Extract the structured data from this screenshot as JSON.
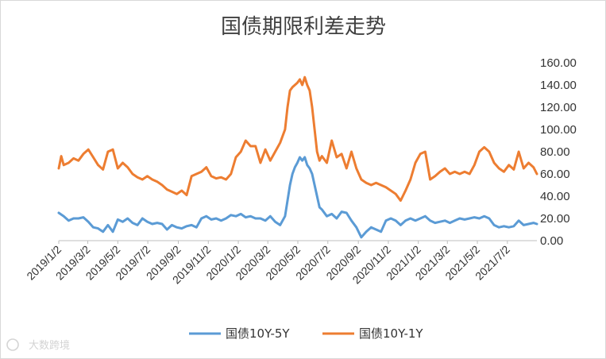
{
  "chart_data": {
    "type": "line",
    "title": "国债期限利差走势",
    "x_tick_labels": [
      "2019/1/2",
      "2019/3/2",
      "2019/5/2",
      "2019/7/2",
      "2019/9/2",
      "2019/11/2",
      "2020/1/2",
      "2020/3/2",
      "2020/5/2",
      "2020/7/2",
      "2020/9/2",
      "2020/11/2",
      "2021/1/2",
      "2021/3/2",
      "2021/5/2",
      "2021/7/2"
    ],
    "y_tick_labels": [
      "0.00",
      "20.00",
      "40.00",
      "60.00",
      "80.00",
      "100.00",
      "120.00",
      "140.00",
      "160.00"
    ],
    "ylim": [
      0,
      160
    ],
    "x_range": [
      "2019/1/2",
      "2021/8/31"
    ],
    "grid": false,
    "legend_position": "bottom",
    "series": [
      {
        "name": "国债10Y-5Y",
        "color": "#5b9bd5",
        "points": [
          [
            "2019/1/2",
            25
          ],
          [
            "2019/1/12",
            22
          ],
          [
            "2019/1/22",
            18
          ],
          [
            "2019/2/1",
            20
          ],
          [
            "2019/2/11",
            20
          ],
          [
            "2019/2/21",
            21
          ],
          [
            "2019/3/3",
            17
          ],
          [
            "2019/3/13",
            12
          ],
          [
            "2019/3/23",
            11
          ],
          [
            "2019/4/2",
            8
          ],
          [
            "2019/4/12",
            14
          ],
          [
            "2019/4/22",
            8
          ],
          [
            "2019/5/2",
            19
          ],
          [
            "2019/5/12",
            17
          ],
          [
            "2019/5/22",
            20
          ],
          [
            "2019/6/1",
            16
          ],
          [
            "2019/6/11",
            14
          ],
          [
            "2019/6/21",
            20
          ],
          [
            "2019/7/1",
            17
          ],
          [
            "2019/7/11",
            15
          ],
          [
            "2019/7/21",
            16
          ],
          [
            "2019/7/31",
            15
          ],
          [
            "2019/8/10",
            10
          ],
          [
            "2019/8/20",
            14
          ],
          [
            "2019/8/30",
            12
          ],
          [
            "2019/9/9",
            11
          ],
          [
            "2019/9/19",
            13
          ],
          [
            "2019/9/29",
            14
          ],
          [
            "2019/10/9",
            12
          ],
          [
            "2019/10/19",
            20
          ],
          [
            "2019/10/29",
            22
          ],
          [
            "2019/11/8",
            19
          ],
          [
            "2019/11/18",
            20
          ],
          [
            "2019/11/28",
            18
          ],
          [
            "2019/12/8",
            20
          ],
          [
            "2019/12/18",
            23
          ],
          [
            "2019/12/28",
            22
          ],
          [
            "2020/1/7",
            24
          ],
          [
            "2020/1/17",
            21
          ],
          [
            "2020/1/27",
            22
          ],
          [
            "2020/2/6",
            20
          ],
          [
            "2020/2/16",
            20
          ],
          [
            "2020/2/26",
            18
          ],
          [
            "2020/3/7",
            22
          ],
          [
            "2020/3/17",
            17
          ],
          [
            "2020/3/27",
            14
          ],
          [
            "2020/4/6",
            22
          ],
          [
            "2020/4/11",
            36
          ],
          [
            "2020/4/16",
            50
          ],
          [
            "2020/4/21",
            60
          ],
          [
            "2020/4/26",
            66
          ],
          [
            "2020/5/1",
            70
          ],
          [
            "2020/5/6",
            75
          ],
          [
            "2020/5/11",
            72
          ],
          [
            "2020/5/16",
            75
          ],
          [
            "2020/5/21",
            68
          ],
          [
            "2020/5/26",
            65
          ],
          [
            "2020/5/31",
            60
          ],
          [
            "2020/6/5",
            50
          ],
          [
            "2020/6/10",
            40
          ],
          [
            "2020/6/15",
            30
          ],
          [
            "2020/6/20",
            28
          ],
          [
            "2020/6/30",
            22
          ],
          [
            "2020/7/10",
            24
          ],
          [
            "2020/7/20",
            20
          ],
          [
            "2020/7/30",
            26
          ],
          [
            "2020/8/9",
            25
          ],
          [
            "2020/8/19",
            18
          ],
          [
            "2020/8/29",
            12
          ],
          [
            "2020/9/8",
            3
          ],
          [
            "2020/9/18",
            8
          ],
          [
            "2020/9/28",
            12
          ],
          [
            "2020/10/8",
            10
          ],
          [
            "2020/10/18",
            8
          ],
          [
            "2020/10/28",
            18
          ],
          [
            "2020/11/7",
            20
          ],
          [
            "2020/11/17",
            18
          ],
          [
            "2020/11/27",
            14
          ],
          [
            "2020/12/7",
            18
          ],
          [
            "2020/12/17",
            20
          ],
          [
            "2020/12/27",
            18
          ],
          [
            "2021/1/6",
            20
          ],
          [
            "2021/1/16",
            22
          ],
          [
            "2021/1/26",
            18
          ],
          [
            "2021/2/5",
            16
          ],
          [
            "2021/2/15",
            17
          ],
          [
            "2021/2/25",
            18
          ],
          [
            "2021/3/7",
            16
          ],
          [
            "2021/3/17",
            18
          ],
          [
            "2021/3/27",
            20
          ],
          [
            "2021/4/6",
            19
          ],
          [
            "2021/4/16",
            20
          ],
          [
            "2021/4/26",
            21
          ],
          [
            "2021/5/6",
            20
          ],
          [
            "2021/5/16",
            22
          ],
          [
            "2021/5/26",
            20
          ],
          [
            "2021/6/5",
            14
          ],
          [
            "2021/6/15",
            12
          ],
          [
            "2021/6/25",
            13
          ],
          [
            "2021/7/5",
            12
          ],
          [
            "2021/7/15",
            13
          ],
          [
            "2021/7/25",
            18
          ],
          [
            "2021/8/4",
            14
          ],
          [
            "2021/8/14",
            15
          ],
          [
            "2021/8/24",
            16
          ],
          [
            "2021/8/31",
            15
          ]
        ]
      },
      {
        "name": "国债10Y-1Y",
        "color": "#ed7d31",
        "points": [
          [
            "2019/1/2",
            65
          ],
          [
            "2019/1/7",
            76
          ],
          [
            "2019/1/12",
            68
          ],
          [
            "2019/1/22",
            70
          ],
          [
            "2019/2/1",
            74
          ],
          [
            "2019/2/11",
            72
          ],
          [
            "2019/2/21",
            78
          ],
          [
            "2019/3/3",
            82
          ],
          [
            "2019/3/13",
            75
          ],
          [
            "2019/3/23",
            68
          ],
          [
            "2019/4/2",
            64
          ],
          [
            "2019/4/12",
            80
          ],
          [
            "2019/4/22",
            82
          ],
          [
            "2019/5/2",
            65
          ],
          [
            "2019/5/12",
            70
          ],
          [
            "2019/5/22",
            66
          ],
          [
            "2019/6/1",
            60
          ],
          [
            "2019/6/11",
            57
          ],
          [
            "2019/6/21",
            55
          ],
          [
            "2019/7/1",
            58
          ],
          [
            "2019/7/11",
            55
          ],
          [
            "2019/7/21",
            53
          ],
          [
            "2019/7/31",
            50
          ],
          [
            "2019/8/10",
            46
          ],
          [
            "2019/8/20",
            44
          ],
          [
            "2019/8/30",
            42
          ],
          [
            "2019/9/9",
            45
          ],
          [
            "2019/9/19",
            41
          ],
          [
            "2019/9/29",
            58
          ],
          [
            "2019/10/9",
            60
          ],
          [
            "2019/10/19",
            62
          ],
          [
            "2019/10/29",
            66
          ],
          [
            "2019/11/8",
            58
          ],
          [
            "2019/11/18",
            56
          ],
          [
            "2019/11/28",
            57
          ],
          [
            "2019/12/8",
            55
          ],
          [
            "2019/12/18",
            60
          ],
          [
            "2019/12/28",
            75
          ],
          [
            "2020/1/7",
            80
          ],
          [
            "2020/1/17",
            90
          ],
          [
            "2020/1/27",
            85
          ],
          [
            "2020/2/6",
            85
          ],
          [
            "2020/2/16",
            70
          ],
          [
            "2020/2/26",
            82
          ],
          [
            "2020/3/7",
            72
          ],
          [
            "2020/3/17",
            80
          ],
          [
            "2020/3/27",
            88
          ],
          [
            "2020/4/6",
            100
          ],
          [
            "2020/4/11",
            120
          ],
          [
            "2020/4/16",
            135
          ],
          [
            "2020/4/21",
            138
          ],
          [
            "2020/4/26",
            140
          ],
          [
            "2020/5/1",
            142
          ],
          [
            "2020/5/6",
            145
          ],
          [
            "2020/5/11",
            140
          ],
          [
            "2020/5/16",
            147
          ],
          [
            "2020/5/21",
            140
          ],
          [
            "2020/5/26",
            135
          ],
          [
            "2020/5/31",
            120
          ],
          [
            "2020/6/5",
            100
          ],
          [
            "2020/6/10",
            80
          ],
          [
            "2020/6/15",
            72
          ],
          [
            "2020/6/20",
            76
          ],
          [
            "2020/6/30",
            70
          ],
          [
            "2020/7/10",
            90
          ],
          [
            "2020/7/20",
            75
          ],
          [
            "2020/7/30",
            78
          ],
          [
            "2020/8/9",
            65
          ],
          [
            "2020/8/19",
            80
          ],
          [
            "2020/8/29",
            65
          ],
          [
            "2020/9/8",
            55
          ],
          [
            "2020/9/18",
            52
          ],
          [
            "2020/9/28",
            50
          ],
          [
            "2020/10/8",
            52
          ],
          [
            "2020/10/18",
            50
          ],
          [
            "2020/10/28",
            48
          ],
          [
            "2020/11/7",
            45
          ],
          [
            "2020/11/17",
            42
          ],
          [
            "2020/11/27",
            36
          ],
          [
            "2020/12/7",
            45
          ],
          [
            "2020/12/17",
            55
          ],
          [
            "2020/12/27",
            70
          ],
          [
            "2021/1/6",
            78
          ],
          [
            "2021/1/16",
            80
          ],
          [
            "2021/1/26",
            55
          ],
          [
            "2021/2/5",
            58
          ],
          [
            "2021/2/15",
            62
          ],
          [
            "2021/2/25",
            65
          ],
          [
            "2021/3/7",
            60
          ],
          [
            "2021/3/17",
            62
          ],
          [
            "2021/3/27",
            60
          ],
          [
            "2021/4/6",
            62
          ],
          [
            "2021/4/16",
            60
          ],
          [
            "2021/4/26",
            68
          ],
          [
            "2021/5/6",
            80
          ],
          [
            "2021/5/16",
            84
          ],
          [
            "2021/5/26",
            80
          ],
          [
            "2021/6/5",
            70
          ],
          [
            "2021/6/15",
            65
          ],
          [
            "2021/6/25",
            62
          ],
          [
            "2021/7/5",
            68
          ],
          [
            "2021/7/15",
            64
          ],
          [
            "2021/7/25",
            80
          ],
          [
            "2021/8/4",
            65
          ],
          [
            "2021/8/14",
            70
          ],
          [
            "2021/8/24",
            66
          ],
          [
            "2021/8/31",
            60
          ]
        ]
      }
    ]
  },
  "watermark": "大数跨境"
}
